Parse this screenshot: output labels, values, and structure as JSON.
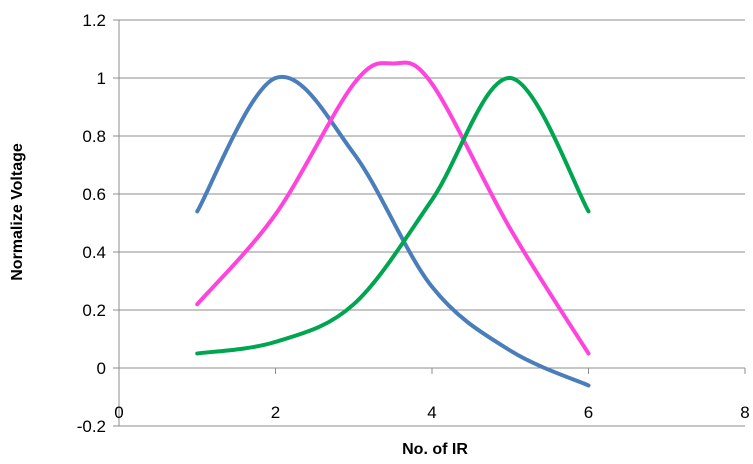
{
  "chart_data": {
    "type": "line",
    "title": "",
    "xlabel": "No. of IR",
    "ylabel": "Normalize Voltage",
    "xlim": [
      0,
      8
    ],
    "ylim": [
      -0.2,
      1.2
    ],
    "x_ticks": [
      0,
      2,
      4,
      6,
      8
    ],
    "y_ticks": [
      -0.2,
      0,
      0.2,
      0.4,
      0.6,
      0.8,
      1,
      1.2
    ],
    "x_tick_labels": [
      "0",
      "2",
      "4",
      "6",
      "8"
    ],
    "y_tick_labels": [
      "-0.2",
      "0",
      "0.2",
      "0.4",
      "0.6",
      "0.8",
      "1",
      "1.2"
    ],
    "grid": "horizontal",
    "legend": "none",
    "smooth": true,
    "series": [
      {
        "color": "#4a7ebb",
        "x": [
          1,
          2,
          3,
          4,
          5,
          6
        ],
        "y": [
          0.54,
          1.0,
          0.74,
          0.28,
          0.06,
          -0.06
        ]
      },
      {
        "color": "#ff44dd",
        "x": [
          1,
          2,
          3,
          3.5,
          4,
          5,
          6
        ],
        "y": [
          0.22,
          0.53,
          0.98,
          1.05,
          0.98,
          0.48,
          0.05
        ]
      },
      {
        "color": "#00a550",
        "x": [
          1,
          2,
          3,
          4,
          5,
          6
        ],
        "y": [
          0.05,
          0.09,
          0.22,
          0.58,
          1.0,
          0.54
        ]
      }
    ]
  }
}
